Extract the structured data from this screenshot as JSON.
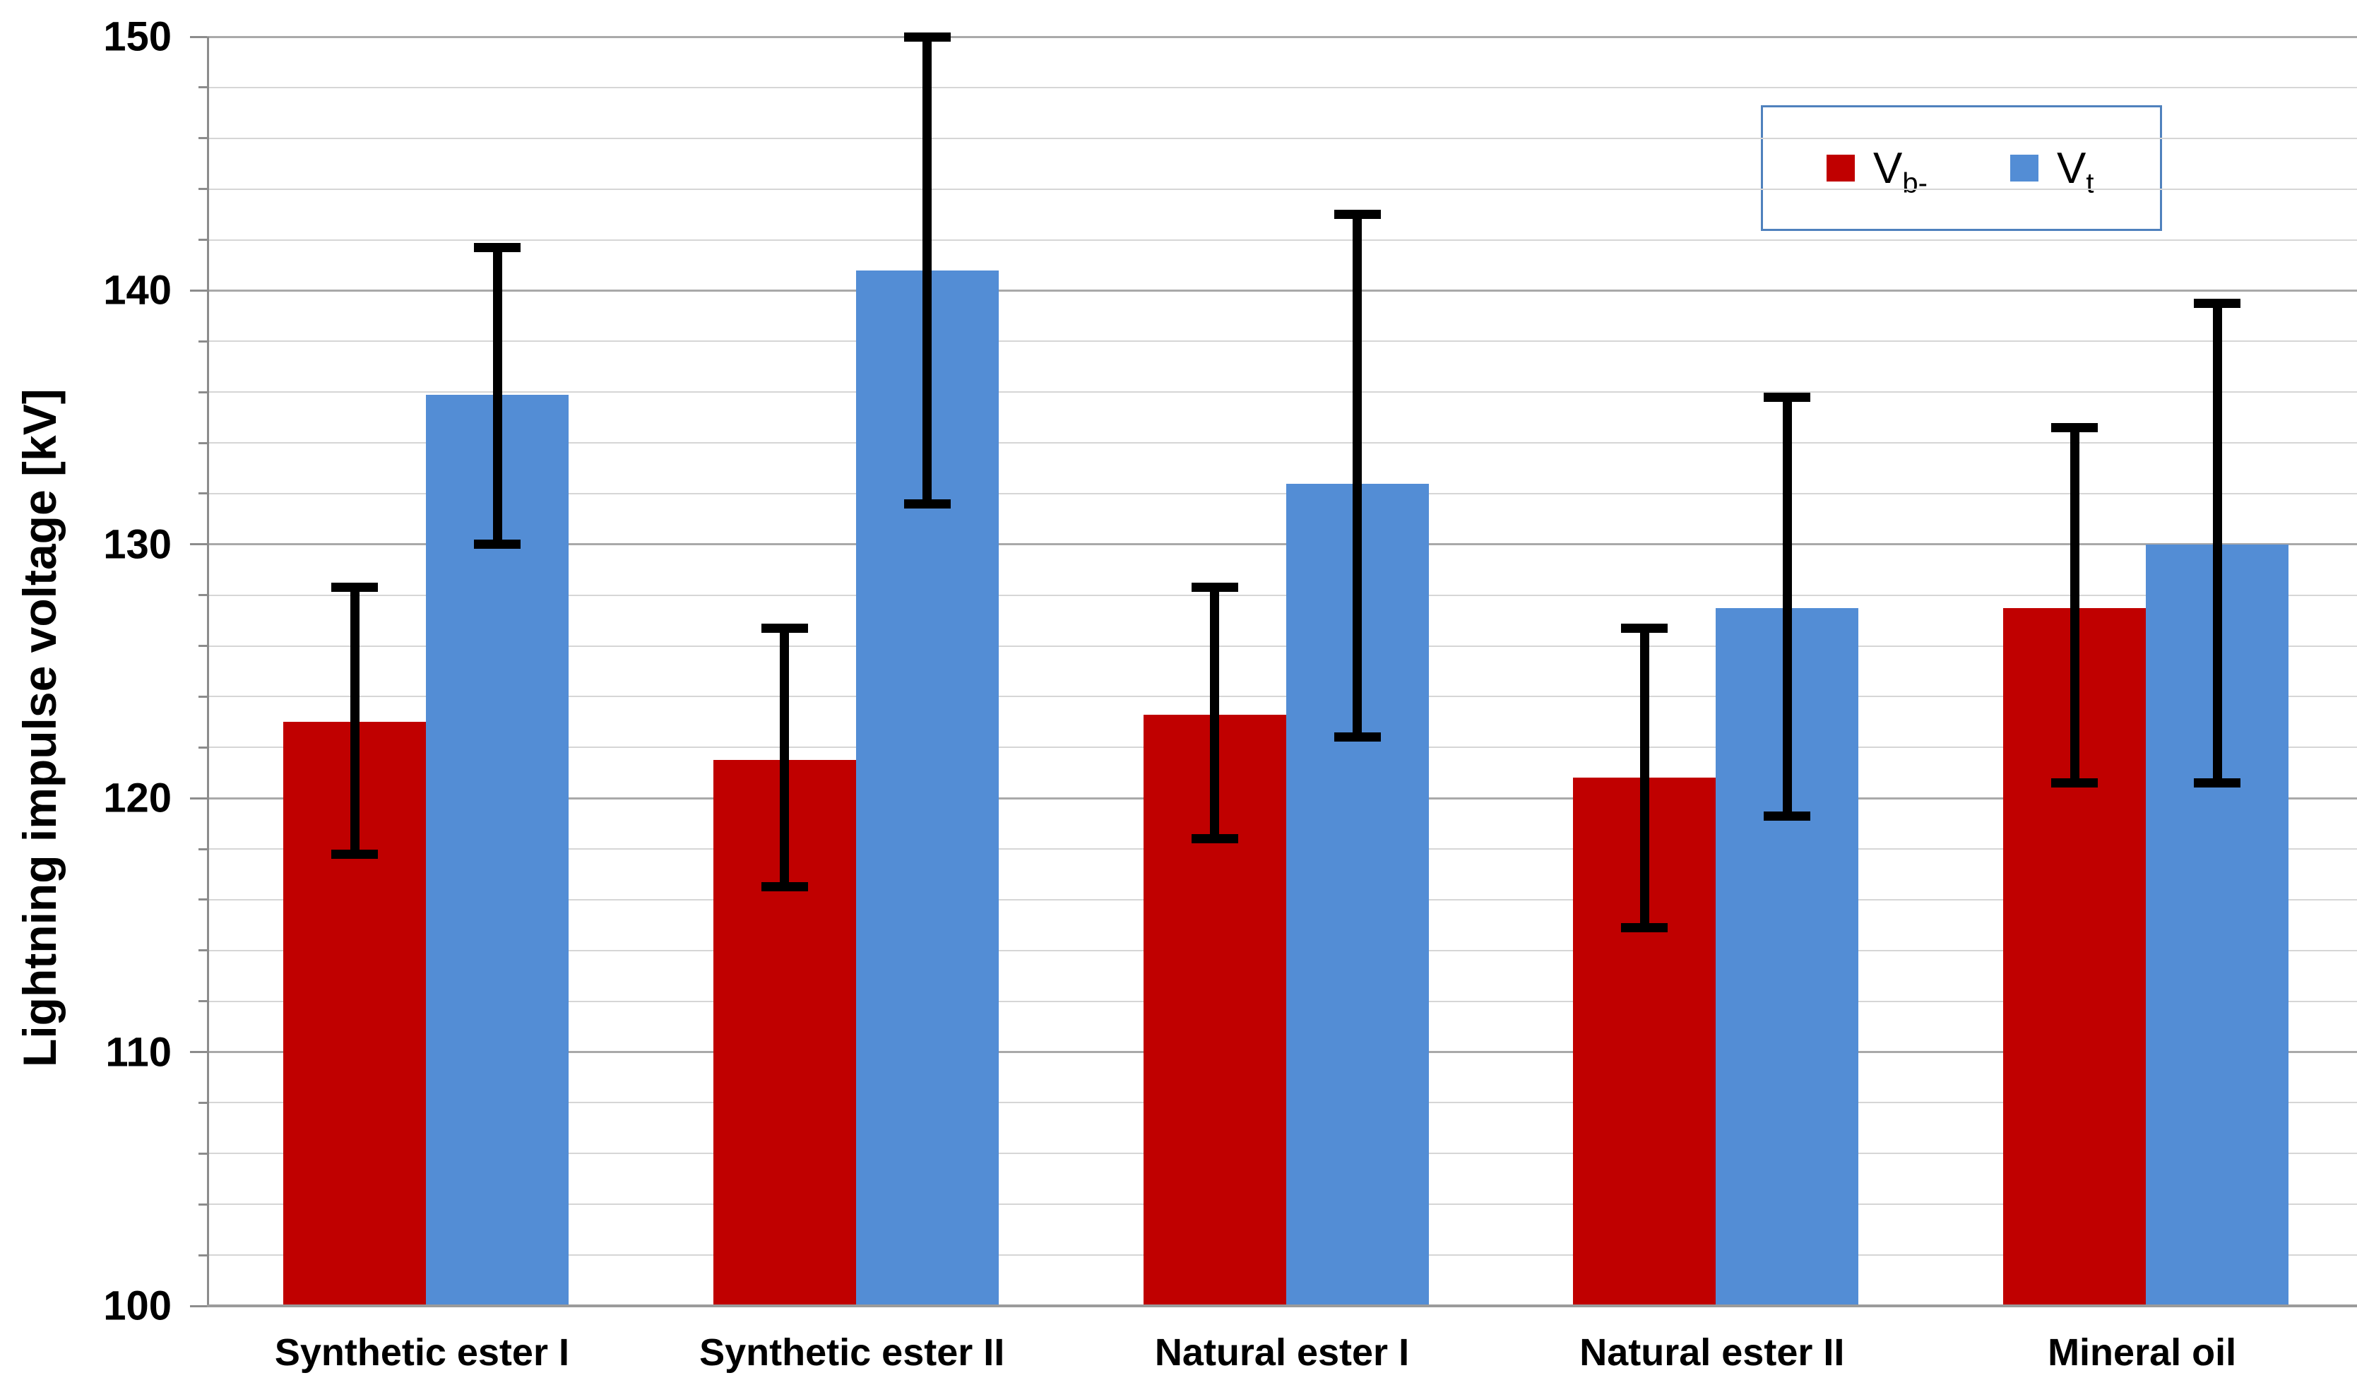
{
  "chart_data": {
    "type": "bar",
    "title": "",
    "ylabel": "Lightning impulse voltage [kV]",
    "xlabel": "",
    "ylim": [
      100,
      150
    ],
    "yticks": [
      100,
      110,
      120,
      130,
      140,
      150
    ],
    "minor_grid_step": 2,
    "major_grid_step": 10,
    "grid": true,
    "legend_position": "top-right",
    "categories": [
      "Synthetic ester I",
      "Synthetic ester II",
      "Natural ester I",
      "Natural ester II",
      "Mineral oil"
    ],
    "series": [
      {
        "name": "Vb-",
        "label_main": "V",
        "label_sub": "b-",
        "color": "#c00000",
        "values": [
          123.0,
          121.5,
          123.3,
          120.8,
          127.5
        ],
        "err_low": [
          117.8,
          116.5,
          118.4,
          114.9,
          120.6
        ],
        "err_high": [
          128.3,
          126.7,
          128.3,
          126.7,
          134.6
        ]
      },
      {
        "name": "Vt",
        "label_main": "V",
        "label_sub": "t",
        "color": "#538dd5",
        "values": [
          135.9,
          140.8,
          132.4,
          127.5,
          130.0
        ],
        "err_low": [
          130.0,
          131.6,
          122.4,
          119.3,
          120.6
        ],
        "err_high": [
          141.7,
          150.0,
          143.0,
          135.8,
          139.5
        ]
      }
    ],
    "colors": {
      "series1": "#c00000",
      "series2": "#538dd5",
      "legend_border": "#4f81bd",
      "minor_grid": "#d6d6d6",
      "major_grid": "#a9a9a9",
      "axis": "#8c8c8c",
      "error_bar": "#000000",
      "text": "#000000"
    }
  }
}
